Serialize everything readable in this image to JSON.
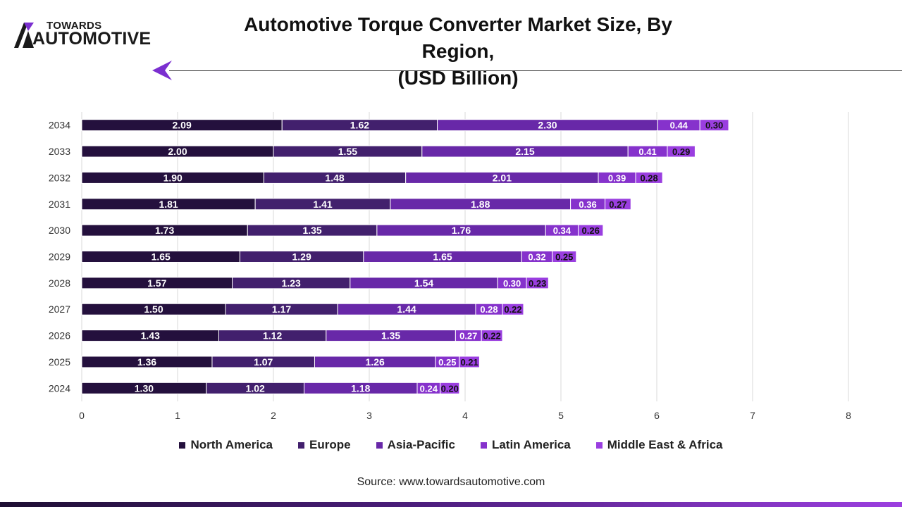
{
  "logo": {
    "top": "TOWARDS",
    "bottom": "AUTOMOTIVE"
  },
  "title_line1": "Automotive Torque Converter Market Size, By Region,",
  "title_line2": "(USD Billion)",
  "source": "Source: www.towardsautomotive.com",
  "colors": {
    "north_america": "#24103d",
    "europe": "#42206d",
    "asia_pacific": "#6828a8",
    "latin_america": "#8632cc",
    "mea": "#9a3ee0",
    "accent": "#7b2fd0",
    "grid": "#d9d9d9"
  },
  "chart_data": {
    "type": "bar",
    "orientation": "horizontal",
    "stacked": true,
    "categories": [
      "2034",
      "2033",
      "2032",
      "2031",
      "2030",
      "2029",
      "2028",
      "2027",
      "2026",
      "2025",
      "2024"
    ],
    "series": [
      {
        "name": "North America",
        "values": [
          2.09,
          2.0,
          1.9,
          1.81,
          1.73,
          1.65,
          1.57,
          1.5,
          1.43,
          1.36,
          1.3
        ]
      },
      {
        "name": "Europe",
        "values": [
          1.62,
          1.55,
          1.48,
          1.41,
          1.35,
          1.29,
          1.23,
          1.17,
          1.12,
          1.07,
          1.02
        ]
      },
      {
        "name": "Asia-Pacific",
        "values": [
          2.3,
          2.15,
          2.01,
          1.88,
          1.76,
          1.65,
          1.54,
          1.44,
          1.35,
          1.26,
          1.18
        ]
      },
      {
        "name": "Latin America",
        "values": [
          0.44,
          0.41,
          0.39,
          0.36,
          0.34,
          0.32,
          0.3,
          0.28,
          0.27,
          0.25,
          0.24
        ]
      },
      {
        "name": "Middle East & Africa",
        "values": [
          0.3,
          0.29,
          0.28,
          0.27,
          0.26,
          0.25,
          0.23,
          0.22,
          0.22,
          0.21,
          0.2
        ]
      }
    ],
    "xlim": [
      0,
      8
    ],
    "xticks": [
      0,
      1,
      2,
      3,
      4,
      5,
      6,
      7,
      8
    ],
    "grid": true,
    "legend_position": "bottom"
  }
}
